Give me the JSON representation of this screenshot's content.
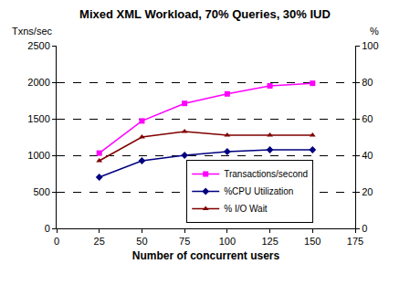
{
  "chart_data": {
    "type": "line",
    "title": "Mixed XML Workload, 70% Queries, 30% IUD",
    "x_label": "Number of concurrent users",
    "y_label": "Txns/sec",
    "y2_label": "%",
    "x": [
      25,
      50,
      75,
      100,
      125,
      150
    ],
    "series": [
      {
        "name": "Transactions/second",
        "color": "#ff00ff",
        "marker": "square",
        "line_style": "solid",
        "values": [
          1030,
          1470,
          1710,
          1840,
          1950,
          1985
        ]
      },
      {
        "name": "%CPU Utilization",
        "color": "#000080",
        "marker": "diamond",
        "line_style": "solid",
        "axis": "y2",
        "values": [
          28,
          37,
          40,
          42,
          43,
          43
        ]
      },
      {
        "name": "% I/O Wait",
        "color": "#800000",
        "marker": "triangle",
        "line_style": "solid",
        "axis": "y2",
        "values": [
          37,
          50,
          53,
          51,
          51,
          51
        ]
      }
    ],
    "xlim": [
      0,
      175
    ],
    "xticks": [
      0,
      25,
      50,
      75,
      100,
      125,
      150,
      175
    ],
    "ylim": [
      0,
      2500
    ],
    "yticks": [
      0,
      500,
      1000,
      1500,
      2000,
      2500
    ],
    "y2lim": [
      0,
      100
    ],
    "y2ticks": [
      0,
      20,
      40,
      60,
      80,
      100
    ],
    "grid": true,
    "legend": "lower right"
  }
}
